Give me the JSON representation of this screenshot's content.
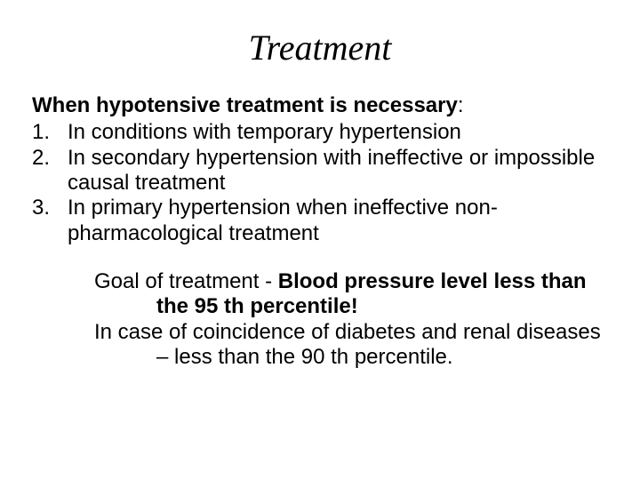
{
  "title": "Treatment",
  "lead": "When hypotensive treatment is necessary",
  "colon": ":",
  "items": [
    {
      "num": "1.",
      "text": "In conditions with temporary hypertension"
    },
    {
      "num": "2.",
      "text": "In secondary hypertension with ineffective or impossible causal treatment"
    },
    {
      "num": "3.",
      "text": "In primary hypertension when ineffective non-pharmacological treatment"
    }
  ],
  "goal_prefix": "Goal of treatment - ",
  "goal_bold": "Blood pressure level less than the 95 th percentile!",
  "coincidence": "In case of coincidence of diabetes and renal diseases – less than the 90 th percentile."
}
